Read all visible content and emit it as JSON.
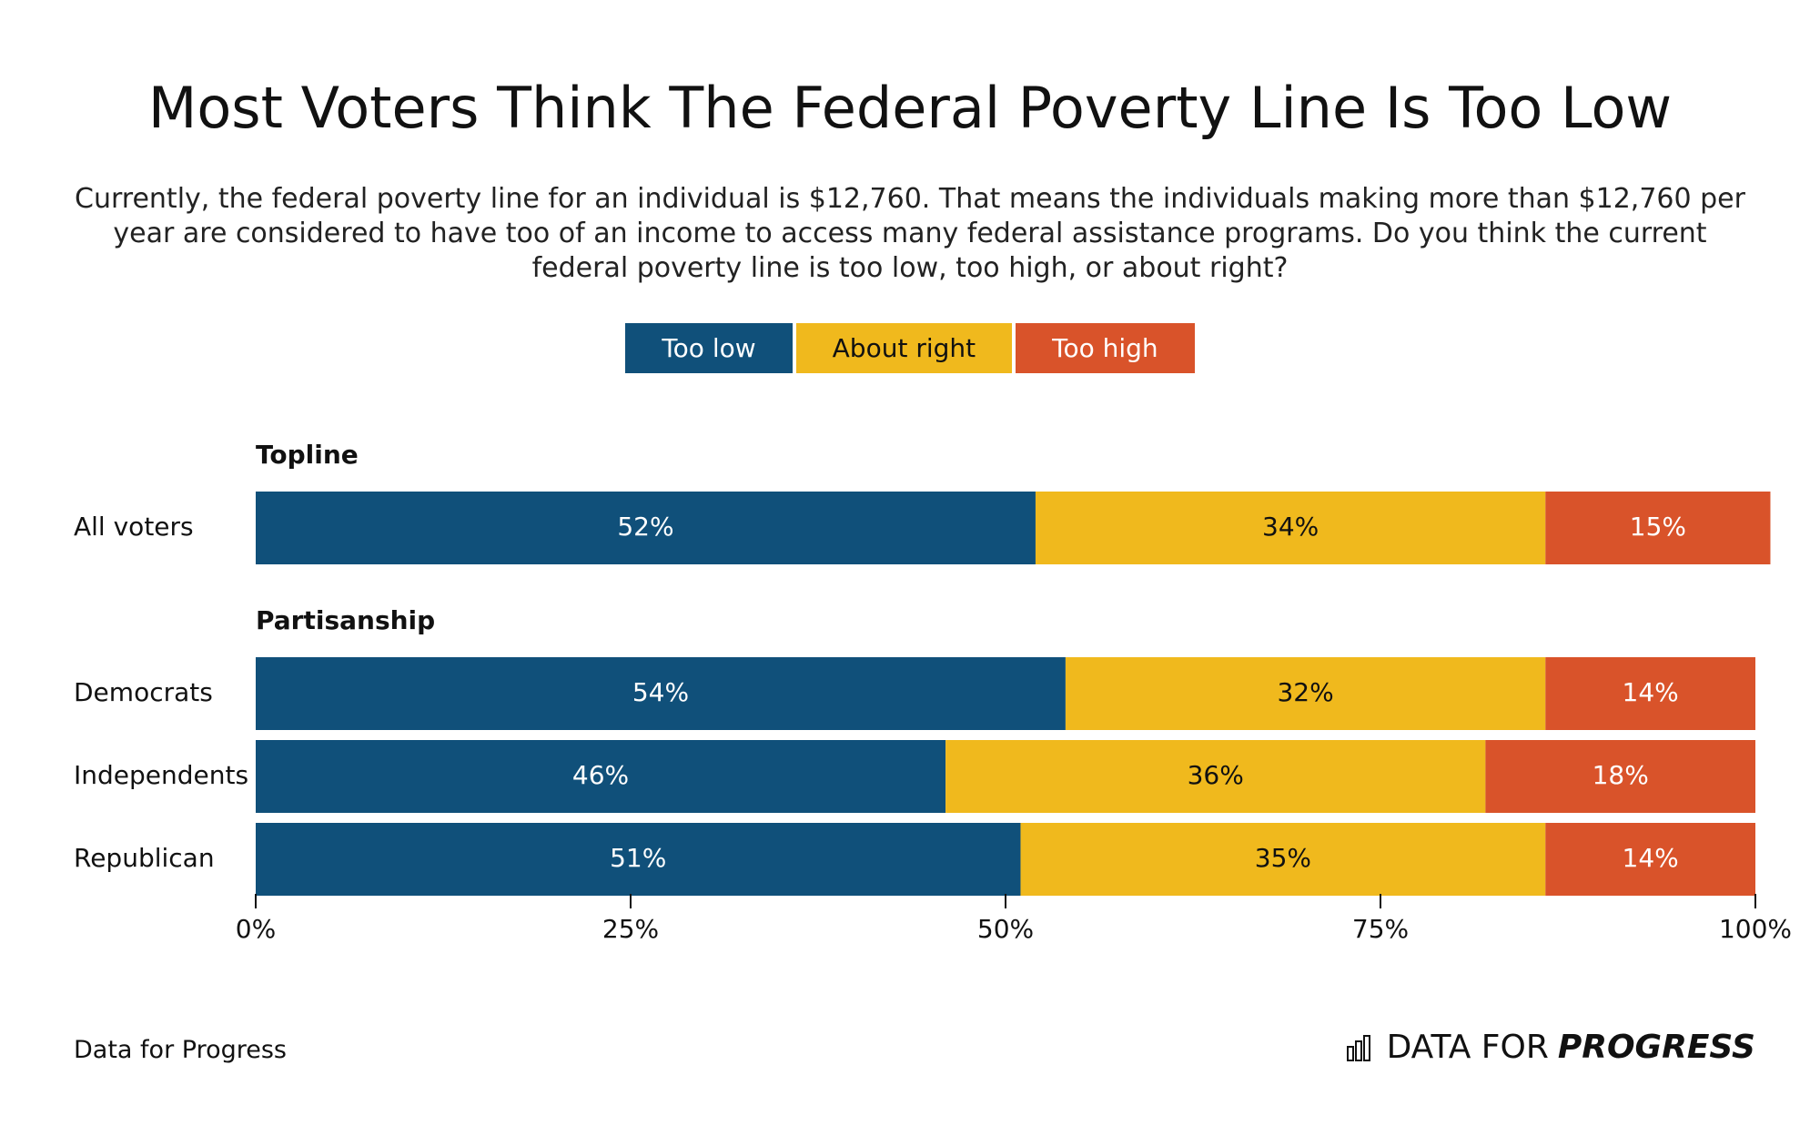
{
  "chart_data": {
    "type": "stacked-bar-horizontal",
    "title": "Most Voters Think The Federal Poverty Line Is Too Low",
    "subtitle": "Currently, the federal poverty line for an individual is $12,760. That means the individuals making more than $12,760 per year are considered to have too of an income to access many federal assistance programs. Do you think the current federal poverty line is too low, too high, or about right?",
    "groups": [
      {
        "name": "Topline",
        "categories": [
          "All voters"
        ]
      },
      {
        "name": "Partisanship",
        "categories": [
          "Democrats",
          "Independents",
          "Republican"
        ]
      }
    ],
    "series": [
      {
        "name": "Too low",
        "color": "#10507a",
        "values": [
          52,
          54,
          46,
          51
        ],
        "value_labels": [
          "52%",
          "54%",
          "46%",
          "51%"
        ]
      },
      {
        "name": "About right",
        "color": "#f0b91d",
        "values": [
          34,
          32,
          36,
          35
        ],
        "value_labels": [
          "34%",
          "32%",
          "36%",
          "35%"
        ]
      },
      {
        "name": "Too high",
        "color": "#d9532a",
        "values": [
          15,
          14,
          18,
          14
        ],
        "value_labels": [
          "15%",
          "14%",
          "18%",
          "14%"
        ]
      }
    ],
    "xlim": [
      0,
      100
    ],
    "xticks": [
      {
        "value": 0,
        "label": "0%"
      },
      {
        "value": 25,
        "label": "25%"
      },
      {
        "value": 50,
        "label": "50%"
      },
      {
        "value": 75,
        "label": "75%"
      },
      {
        "value": 100,
        "label": "100%"
      }
    ],
    "source": "Data for Progress",
    "logo": {
      "text": "DATA FOR",
      "emphasis": "PROGRESS"
    }
  }
}
